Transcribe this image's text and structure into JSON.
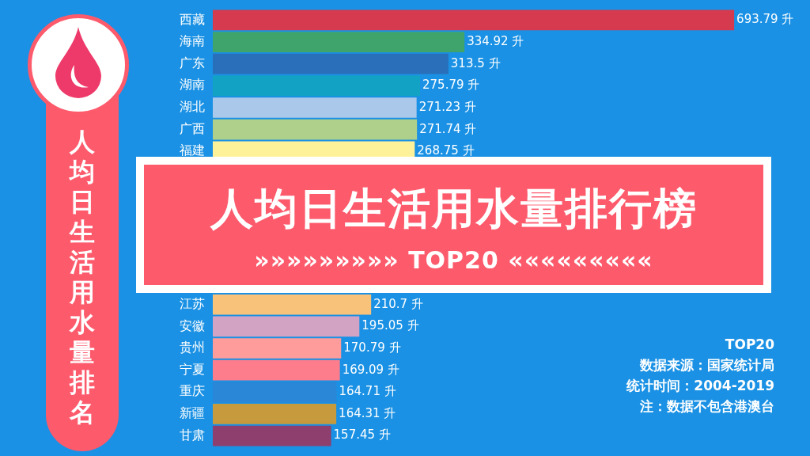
{
  "chart_data": {
    "type": "bar",
    "orientation": "horizontal",
    "title": "人均日生活用水量排行榜",
    "subtitle": "»»»»»»»»» TOP20 «««««««««",
    "categories": [
      "西藏",
      "海南",
      "广东",
      "湖南",
      "湖北",
      "广西",
      "福建",
      null,
      null,
      null,
      null,
      null,
      null,
      "江苏",
      "安徽",
      "贵州",
      "宁夏",
      "重庆",
      "新疆",
      "甘肃"
    ],
    "values": [
      693.79,
      334.92,
      313.5,
      275.79,
      271.23,
      271.74,
      268.75,
      null,
      null,
      null,
      null,
      null,
      null,
      210.7,
      195.05,
      170.79,
      169.09,
      164.71,
      164.31,
      157.45
    ],
    "value_labels": [
      "693.79 升",
      "334.92 升",
      "313.5 升",
      "275.79 升",
      "271.23 升",
      "271.74 升",
      "268.75 升",
      null,
      null,
      null,
      null,
      null,
      null,
      "210.7 升",
      "195.05 升",
      "170.79 升",
      "169.09 升",
      "164.71 升",
      "164.31 升",
      "157.45 升"
    ],
    "colors": [
      "#d63a4e",
      "#3fa46c",
      "#2a6fba",
      "#12a3c4",
      "#a9c8ea",
      "#aed08a",
      "#fdf29a",
      null,
      null,
      null,
      null,
      null,
      null,
      "#f9c27a",
      "#d3a3c4",
      "#fe9c9c",
      "#fe7d8c",
      "#2a86d6",
      "#c89a3e",
      "#8e3f6e"
    ],
    "annotations": [
      "人均日生活用水量排名",
      "TOP20",
      "数据来源：国家统计局",
      "统计时间：2004-2019",
      "注：数据不包含港澳台"
    ],
    "legend": false,
    "tick_labels": "y"
  }
}
